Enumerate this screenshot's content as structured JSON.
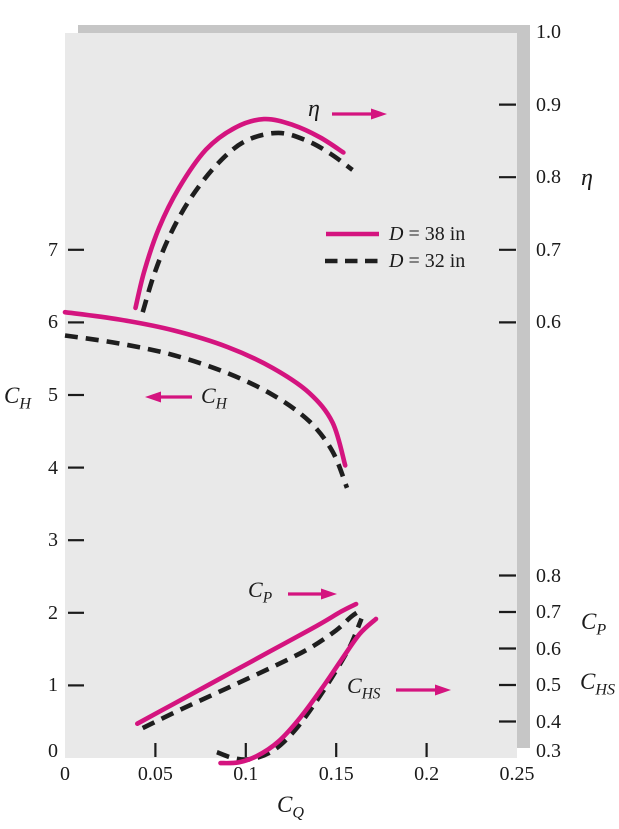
{
  "colors": {
    "magenta": "#d4147f",
    "curve_black": "#1e1e1e",
    "plot_bg": "#e9e9e9",
    "shadow": "#c6c6c6",
    "text": "#1b1b1b"
  },
  "labels": {
    "eta_axis": "η",
    "eta_annotation": "η",
    "ch_axis": {
      "main": "C",
      "sub": "H"
    },
    "ch_annotation": {
      "main": "C",
      "sub": "H"
    },
    "cp_axis": {
      "main": "C",
      "sub": "P"
    },
    "chs_axis": {
      "main": "C",
      "sub": "HS"
    },
    "cp_annotation": {
      "main": "C",
      "sub": "P"
    },
    "chs_annotation": {
      "main": "C",
      "sub": "HS"
    },
    "cq_axis": {
      "main": "C",
      "sub": "Q"
    }
  },
  "legend": {
    "items": [
      {
        "var": "D",
        "rest": "= 38 in",
        "style": "solid"
      },
      {
        "var": "D",
        "rest": "= 32 in",
        "style": "dashed"
      }
    ]
  },
  "chart_data": {
    "type": "line",
    "title": "",
    "x_axis": {
      "label": "C_Q",
      "range": [
        0,
        0.25
      ],
      "tick_marks": [
        0.05,
        0.1,
        0.15,
        0.2
      ],
      "tick_label_values": [
        0,
        0.05,
        0.1,
        0.15,
        0.2,
        0.25
      ],
      "tick_labels": [
        "0",
        "0.05",
        "0.1",
        "0.15",
        "0.2",
        "0.25"
      ]
    },
    "left_axis": {
      "label": "C_H",
      "range": [
        0,
        10
      ],
      "tick_marks": [
        7,
        6,
        5,
        4,
        3,
        2,
        1
      ],
      "tick_label_values": [
        7,
        6,
        5,
        4,
        3,
        2,
        1,
        0
      ],
      "tick_labels": [
        "7",
        "6",
        "5",
        "4",
        "3",
        "2",
        "1",
        "0"
      ]
    },
    "eta_axis": {
      "label": "η",
      "range": [
        0,
        1.0
      ],
      "tick_marks": [
        0.9,
        0.8,
        0.7,
        0.6
      ],
      "tick_label_values": [
        1.0,
        0.9,
        0.8,
        0.7,
        0.6
      ],
      "tick_labels": [
        "1.0",
        "0.9",
        "0.8",
        "0.7",
        "0.6"
      ]
    },
    "right_axis": {
      "labels": [
        "C_P",
        "C_HS"
      ],
      "range": [
        0.3,
        0.8
      ],
      "tick_marks": [
        0.8,
        0.7,
        0.6,
        0.5,
        0.4
      ],
      "tick_label_values": [
        0.8,
        0.7,
        0.6,
        0.5,
        0.4,
        0.3
      ],
      "tick_labels": [
        "0.8",
        "0.7",
        "0.6",
        "0.5",
        "0.4",
        "0.3"
      ]
    },
    "legend_entries": [
      "D = 38 in",
      "D = 32 in"
    ],
    "annotations": [
      {
        "text": "η",
        "arrow": "right"
      },
      {
        "text": "C_H",
        "arrow": "left"
      },
      {
        "text": "C_P",
        "arrow": "right"
      },
      {
        "text": "C_HS",
        "arrow": "right"
      }
    ],
    "series": [
      {
        "id": "eta-d38",
        "quantity": "η",
        "diameter": "D = 38 in",
        "axis": "eta",
        "dashed": false,
        "points": [
          [
            0.039,
            0.62
          ],
          [
            0.044,
            0.672
          ],
          [
            0.052,
            0.73
          ],
          [
            0.063,
            0.785
          ],
          [
            0.078,
            0.838
          ],
          [
            0.094,
            0.868
          ],
          [
            0.11,
            0.88
          ],
          [
            0.126,
            0.872
          ],
          [
            0.141,
            0.855
          ],
          [
            0.154,
            0.834
          ]
        ]
      },
      {
        "id": "eta-d32",
        "quantity": "η",
        "diameter": "D = 32 in",
        "axis": "eta",
        "dashed": true,
        "points": [
          [
            0.043,
            0.614
          ],
          [
            0.049,
            0.664
          ],
          [
            0.058,
            0.72
          ],
          [
            0.07,
            0.773
          ],
          [
            0.085,
            0.82
          ],
          [
            0.1,
            0.85
          ],
          [
            0.118,
            0.861
          ],
          [
            0.134,
            0.85
          ],
          [
            0.147,
            0.832
          ],
          [
            0.159,
            0.81
          ]
        ]
      },
      {
        "id": "ch-d38",
        "quantity": "C_H",
        "diameter": "D = 38 in",
        "axis": "left",
        "dashed": false,
        "points": [
          [
            0.0,
            6.14
          ],
          [
            0.03,
            6.04
          ],
          [
            0.06,
            5.89
          ],
          [
            0.09,
            5.66
          ],
          [
            0.115,
            5.37
          ],
          [
            0.135,
            5.03
          ],
          [
            0.148,
            4.62
          ],
          [
            0.155,
            4.03
          ]
        ]
      },
      {
        "id": "ch-d32",
        "quantity": "C_H",
        "diameter": "D = 32 in",
        "axis": "left",
        "dashed": true,
        "points": [
          [
            0.0,
            5.82
          ],
          [
            0.03,
            5.71
          ],
          [
            0.06,
            5.55
          ],
          [
            0.09,
            5.3
          ],
          [
            0.115,
            5.0
          ],
          [
            0.135,
            4.64
          ],
          [
            0.148,
            4.22
          ],
          [
            0.156,
            3.72
          ]
        ]
      },
      {
        "id": "cp-d38",
        "quantity": "C_P",
        "diameter": "D = 38 in",
        "axis": "right",
        "dashed": false,
        "points": [
          [
            0.04,
            0.394
          ],
          [
            0.06,
            0.448
          ],
          [
            0.08,
            0.502
          ],
          [
            0.1,
            0.556
          ],
          [
            0.12,
            0.61
          ],
          [
            0.14,
            0.664
          ],
          [
            0.153,
            0.702
          ],
          [
            0.161,
            0.722
          ]
        ]
      },
      {
        "id": "cp-d32",
        "quantity": "C_P",
        "diameter": "D = 32 in",
        "axis": "right",
        "dashed": true,
        "points": [
          [
            0.043,
            0.382
          ],
          [
            0.065,
            0.435
          ],
          [
            0.09,
            0.492
          ],
          [
            0.115,
            0.55
          ],
          [
            0.135,
            0.6
          ],
          [
            0.15,
            0.65
          ],
          [
            0.158,
            0.686
          ],
          [
            0.162,
            0.7
          ]
        ]
      },
      {
        "id": "chs-d38",
        "quantity": "C_HS",
        "diameter": "D = 38 in",
        "axis": "right",
        "dashed": false,
        "points": [
          [
            0.086,
            0.286
          ],
          [
            0.096,
            0.288
          ],
          [
            0.106,
            0.305
          ],
          [
            0.118,
            0.345
          ],
          [
            0.13,
            0.41
          ],
          [
            0.142,
            0.49
          ],
          [
            0.153,
            0.57
          ],
          [
            0.163,
            0.64
          ],
          [
            0.172,
            0.681
          ]
        ]
      },
      {
        "id": "chs-d32",
        "quantity": "C_HS",
        "diameter": "D = 32 in",
        "axis": "right",
        "dashed": true,
        "points": [
          [
            0.084,
            0.316
          ],
          [
            0.093,
            0.3
          ],
          [
            0.103,
            0.297
          ],
          [
            0.115,
            0.32
          ],
          [
            0.127,
            0.375
          ],
          [
            0.139,
            0.455
          ],
          [
            0.15,
            0.54
          ],
          [
            0.158,
            0.61
          ],
          [
            0.164,
            0.682
          ]
        ]
      }
    ]
  }
}
